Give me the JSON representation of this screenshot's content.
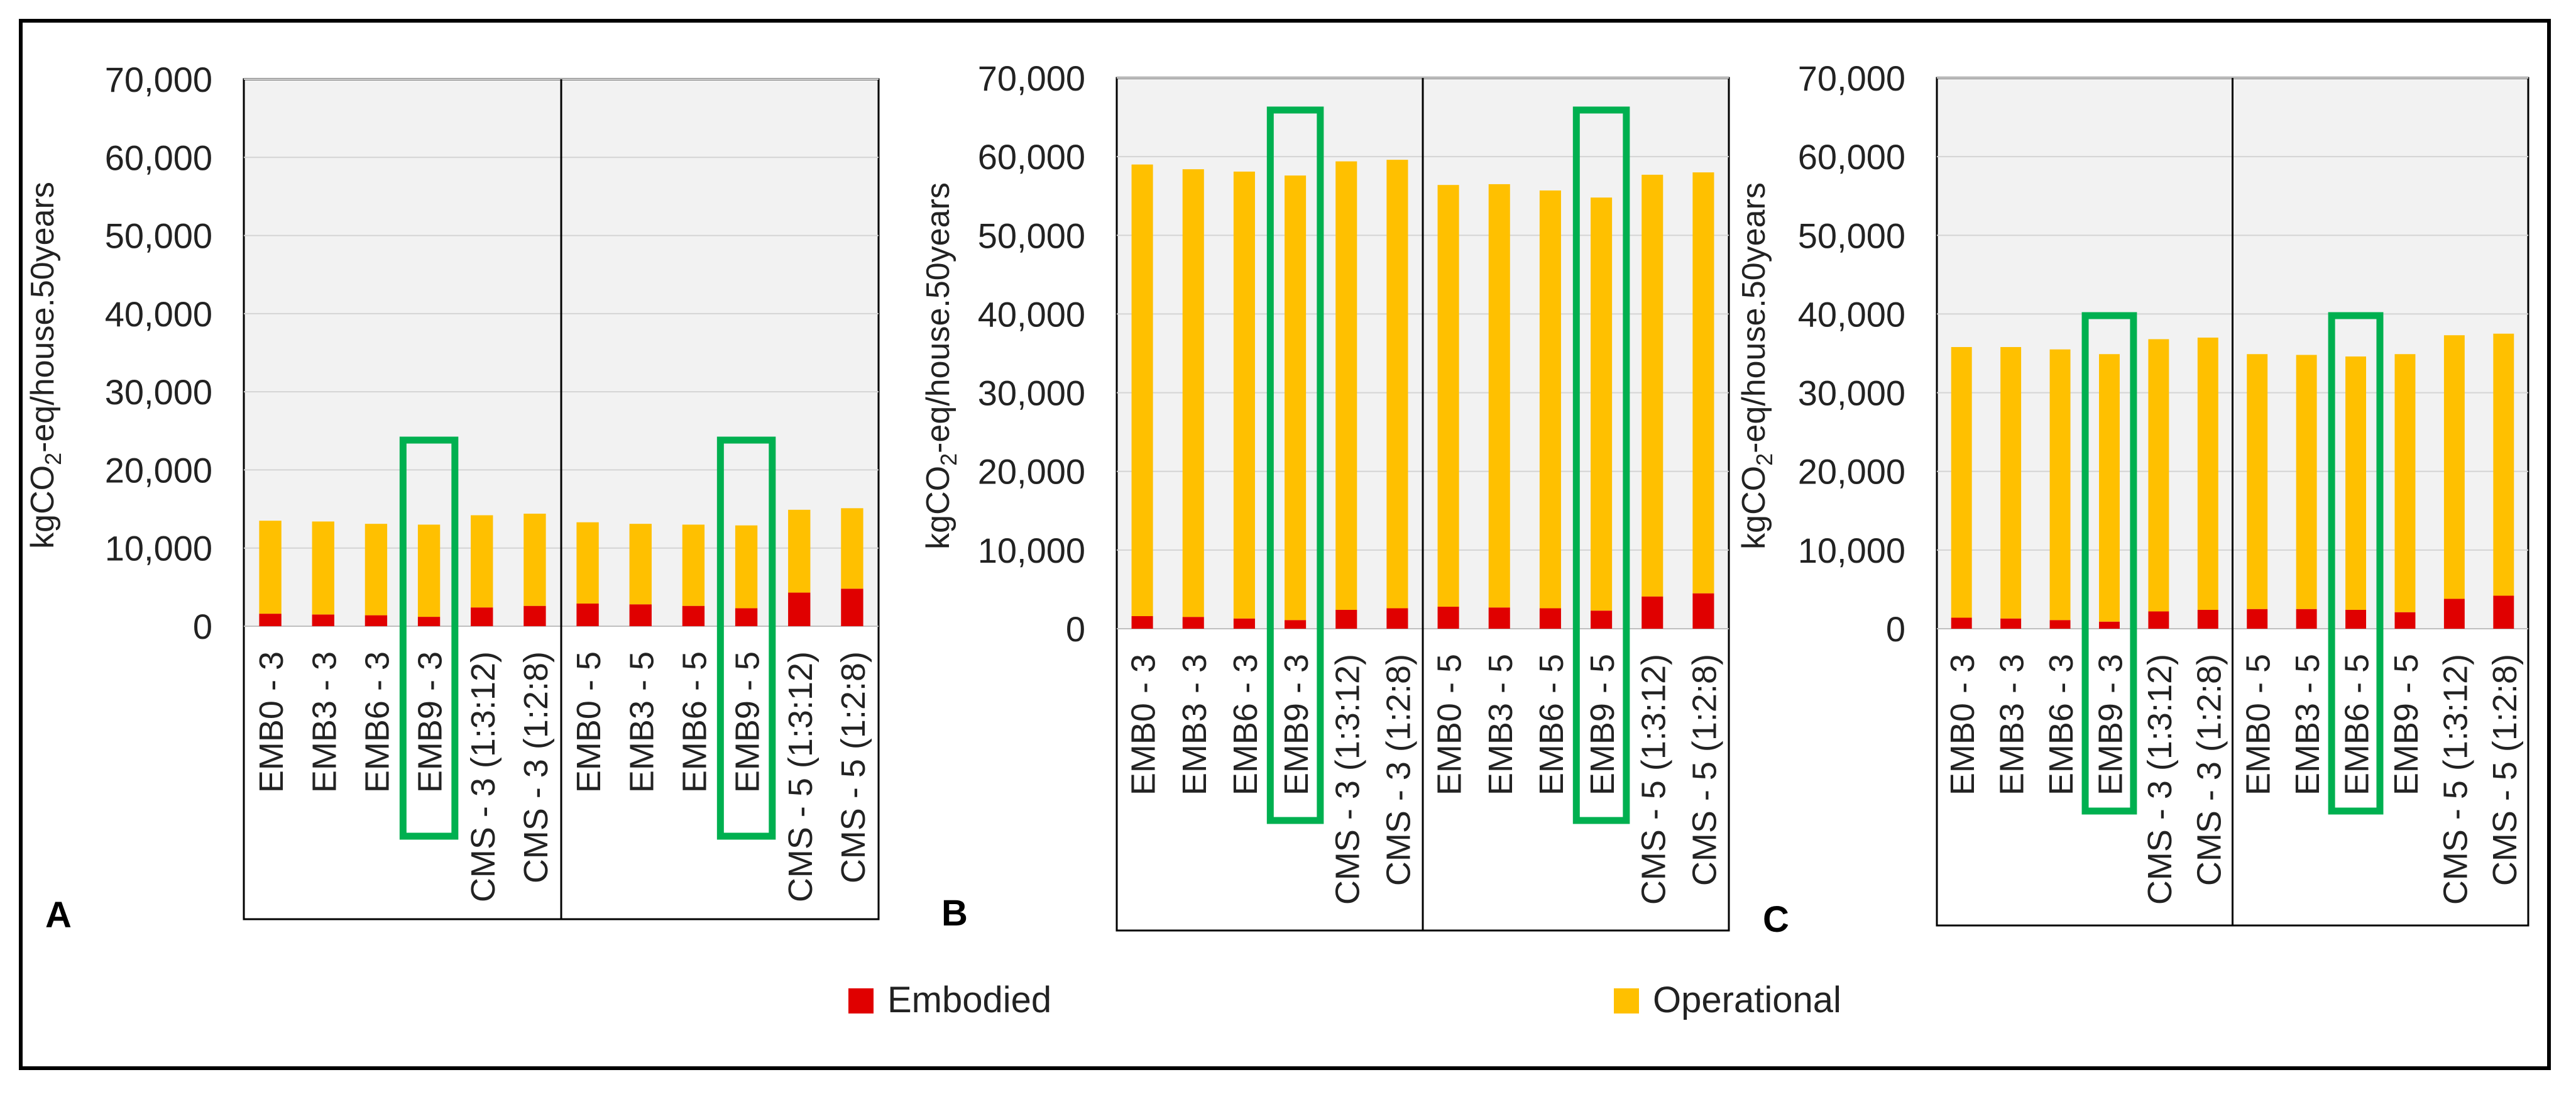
{
  "legend": [
    {
      "key": "embodied",
      "label": "Embodied",
      "color": "#E00000"
    },
    {
      "key": "operational",
      "label": "Operational",
      "color": "#FFC000"
    }
  ],
  "chart_data": [
    {
      "type": "bar",
      "stacked": true,
      "panel_label": "A",
      "ylabel": "kgCO2-eq/house.50years",
      "ylim": [
        0,
        70000
      ],
      "yticks": [
        "0",
        "10,000",
        "20,000",
        "30,000",
        "40,000",
        "50,000",
        "60,000",
        "70,000"
      ],
      "categories": [
        "EMB0 - 3",
        "EMB3 - 3",
        "EMB6 - 3",
        "EMB9 - 3",
        "CMS - 3 (1:3:12)",
        "CMS - 3 (1:2:8)",
        "EMB0 - 5",
        "EMB3 - 5",
        "EMB6 - 5",
        "EMB9 - 5",
        "CMS - 5 (1:3:12)",
        "CMS - 5 (1:2:8)"
      ],
      "series": [
        {
          "name": "Embodied",
          "values": [
            1600,
            1500,
            1400,
            1200,
            2400,
            2600,
            2900,
            2800,
            2600,
            2300,
            4300,
            4800
          ]
        },
        {
          "name": "Operational",
          "values": [
            11900,
            11900,
            11700,
            11800,
            11800,
            11800,
            10400,
            10300,
            10400,
            10600,
            10600,
            10300
          ]
        }
      ],
      "highlight_categories": [
        "EMB9 - 3",
        "EMB9 - 5"
      ],
      "groups": [
        "3",
        "5"
      ]
    },
    {
      "type": "bar",
      "stacked": true,
      "panel_label": "B",
      "ylabel": "kgCO2-eq/house.50years",
      "ylim": [
        0,
        70000
      ],
      "yticks": [
        "0",
        "10,000",
        "20,000",
        "30,000",
        "40,000",
        "50,000",
        "60,000",
        "70,000"
      ],
      "categories": [
        "EMB0 - 3",
        "EMB3 - 3",
        "EMB6 - 3",
        "EMB9 - 3",
        "CMS - 3 (1:3:12)",
        "CMS - 3 (1:2:8)",
        "EMB0 - 5",
        "EMB3 - 5",
        "EMB6 - 5",
        "EMB9 - 5",
        "CMS - 5 (1:3:12)",
        "CMS - 5 (1:2:8)"
      ],
      "series": [
        {
          "name": "Embodied",
          "values": [
            1600,
            1500,
            1300,
            1100,
            2400,
            2600,
            2800,
            2700,
            2600,
            2300,
            4100,
            4500
          ]
        },
        {
          "name": "Operational",
          "values": [
            57400,
            56900,
            56800,
            56500,
            57000,
            57000,
            53600,
            53800,
            53100,
            52500,
            53600,
            53500
          ]
        }
      ],
      "highlight_categories": [
        "EMB9 - 3",
        "EMB9 - 5"
      ],
      "groups": [
        "3",
        "5"
      ]
    },
    {
      "type": "bar",
      "stacked": true,
      "panel_label": "C",
      "ylabel": "kgCO2-eq/house.50years",
      "ylim": [
        0,
        70000
      ],
      "yticks": [
        "0",
        "10,000",
        "20,000",
        "30,000",
        "40,000",
        "50,000",
        "60,000",
        "70,000"
      ],
      "categories": [
        "EMB0 - 3",
        "EMB3 - 3",
        "EMB6 - 3",
        "EMB9 - 3",
        "CMS - 3 (1:3:12)",
        "CMS - 3 (1:2:8)",
        "EMB0 - 5",
        "EMB3 - 5",
        "EMB6 - 5",
        "EMB9 - 5",
        "CMS - 5 (1:3:12)",
        "CMS - 5 (1:2:8)"
      ],
      "series": [
        {
          "name": "Embodied",
          "values": [
            1400,
            1300,
            1100,
            900,
            2200,
            2400,
            2500,
            2500,
            2400,
            2100,
            3800,
            4200
          ]
        },
        {
          "name": "Operational",
          "values": [
            34400,
            34500,
            34400,
            34000,
            34600,
            34600,
            32400,
            32300,
            32200,
            32800,
            33500,
            33300
          ]
        }
      ],
      "highlight_categories": [
        "EMB9 - 3",
        "EMB6 - 5"
      ],
      "groups": [
        "3",
        "5"
      ]
    }
  ]
}
